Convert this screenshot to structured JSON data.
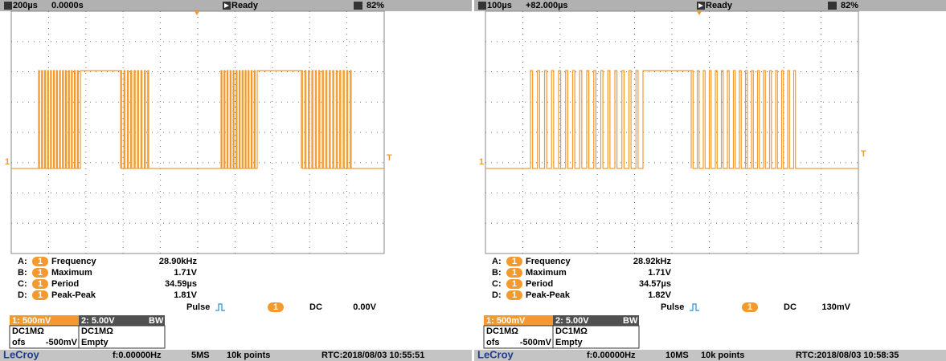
{
  "panels": [
    {
      "header": {
        "timebase": "200µs",
        "delay": "0.0000s",
        "status": "Ready",
        "battery": "82%"
      },
      "markers": {
        "ground": "1",
        "trigger": "T"
      },
      "measurements": [
        {
          "slot": "A:",
          "channel": "1",
          "name": "Frequency",
          "value": "28.90kHz"
        },
        {
          "slot": "B:",
          "channel": "1",
          "name": "Maximum",
          "value": "1.71V"
        },
        {
          "slot": "C:",
          "channel": "1",
          "name": "Period",
          "value": "34.59µs"
        },
        {
          "slot": "D:",
          "channel": "1",
          "name": "Peak-Peak",
          "value": "1.81V"
        }
      ],
      "trigger": {
        "type": "Pulse",
        "channel": "1",
        "coupling": "DC",
        "level": "0.00V"
      },
      "channels": {
        "ch1": "1: 500mV",
        "ch2": "2: 5.00V",
        "bw": "BW",
        "ch1_coupling": "DC1MΩ",
        "ch2_coupling": "DC1MΩ",
        "offset_label": "ofs",
        "offset": "-500mV",
        "ch2_status": "Empty"
      },
      "footer": {
        "brand": "LeCroy",
        "frequency": "f:0.00000Hz",
        "rate": "5MS",
        "points": "10k points",
        "rtc": "RTC:2018/08/03 10:55:51"
      }
    },
    {
      "header": {
        "timebase": "100µs",
        "delay": "+82.000µs",
        "status": "Ready",
        "battery": "82%"
      },
      "markers": {
        "ground": "1",
        "trigger": "T"
      },
      "measurements": [
        {
          "slot": "A:",
          "channel": "1",
          "name": "Frequency",
          "value": "28.92kHz"
        },
        {
          "slot": "B:",
          "channel": "1",
          "name": "Maximum",
          "value": "1.71V"
        },
        {
          "slot": "C:",
          "channel": "1",
          "name": "Period",
          "value": "34.57µs"
        },
        {
          "slot": "D:",
          "channel": "1",
          "name": "Peak-Peak",
          "value": "1.82V"
        }
      ],
      "trigger": {
        "type": "Pulse",
        "channel": "1",
        "coupling": "DC",
        "level": "130mV"
      },
      "channels": {
        "ch1": "1: 500mV",
        "ch2": "2: 5.00V",
        "bw": "BW",
        "ch1_coupling": "DC1MΩ",
        "ch2_coupling": "DC1MΩ",
        "offset_label": "ofs",
        "offset": "-500mV",
        "ch2_status": "Empty"
      },
      "footer": {
        "brand": "LeCroy",
        "frequency": "f:0.00000Hz",
        "rate": "10MS",
        "points": "10k points",
        "rtc": "RTC:2018/08/03 10:58:35"
      }
    }
  ]
}
